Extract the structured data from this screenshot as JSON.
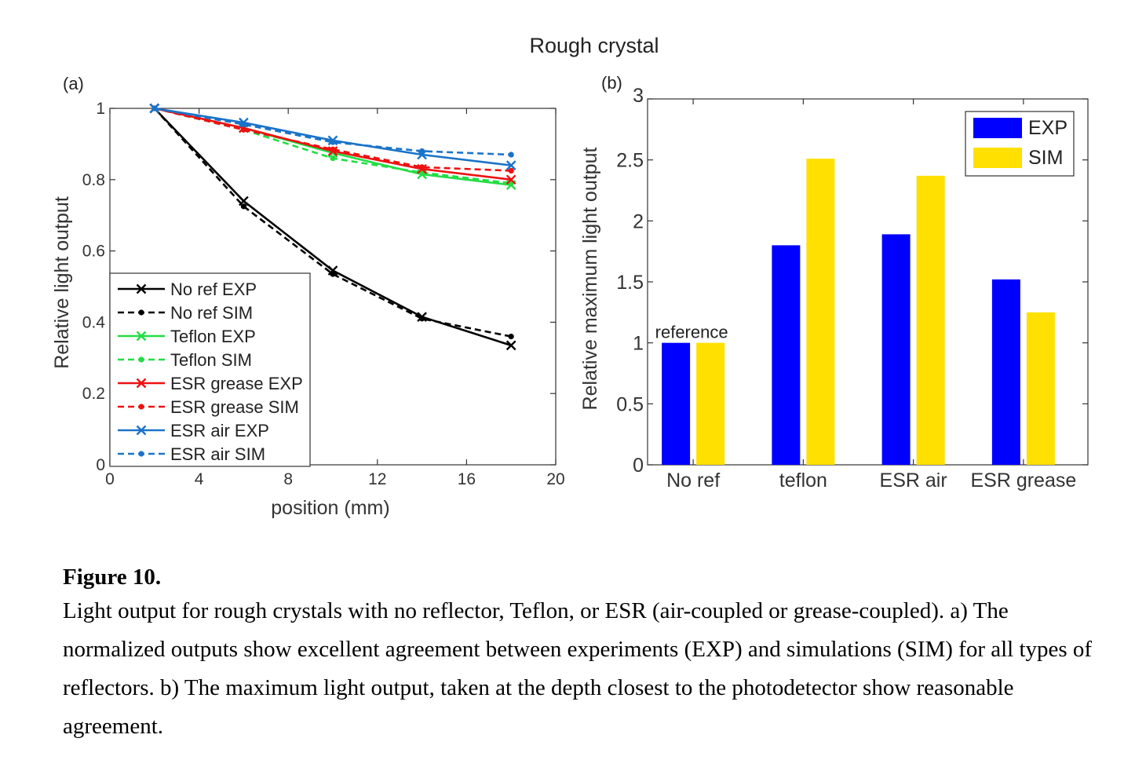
{
  "figure_title": "Rough crystal",
  "caption": {
    "label": "Figure 10.",
    "text": "Light output for rough crystals with no reflector, Teflon, or ESR (air-coupled or grease-coupled). a) The normalized outputs show excellent agreement between experiments (EXP) and simulations (SIM) for all types of reflectors. b) The maximum light output, taken at the depth closest to the photodetector show reasonable agreement."
  },
  "chart_data": [
    {
      "panel_label": "(a)",
      "type": "line",
      "xlabel": "position (mm)",
      "ylabel": "Relative light output",
      "xlim": [
        0,
        20
      ],
      "ylim": [
        0,
        1
      ],
      "xticks": [
        0,
        4,
        8,
        12,
        16,
        20
      ],
      "yticks": [
        0,
        0.2,
        0.4,
        0.6,
        0.8,
        1
      ],
      "grid": false,
      "legend_position": "lower-left",
      "x": [
        2,
        6,
        10,
        14,
        18
      ],
      "series": [
        {
          "name": "No ref EXP",
          "color": "#000000",
          "style": "solid",
          "marker": "x",
          "values": [
            1.0,
            0.74,
            0.545,
            0.415,
            0.335
          ]
        },
        {
          "name": "No ref SIM",
          "color": "#000000",
          "style": "dashed",
          "marker": "dot",
          "values": [
            1.0,
            0.725,
            0.535,
            0.41,
            0.36
          ]
        },
        {
          "name": "Teflon EXP",
          "color": "#22dd44",
          "style": "solid",
          "marker": "x",
          "values": [
            1.0,
            0.945,
            0.875,
            0.815,
            0.785
          ]
        },
        {
          "name": "Teflon SIM",
          "color": "#22dd44",
          "style": "dashed",
          "marker": "dot",
          "values": [
            1.0,
            0.94,
            0.86,
            0.82,
            0.79
          ]
        },
        {
          "name": "ESR grease EXP",
          "color": "#ee1111",
          "style": "solid",
          "marker": "x",
          "values": [
            1.0,
            0.945,
            0.88,
            0.83,
            0.8
          ]
        },
        {
          "name": "ESR grease SIM",
          "color": "#ee1111",
          "style": "dashed",
          "marker": "dot",
          "values": [
            1.0,
            0.94,
            0.885,
            0.835,
            0.825
          ]
        },
        {
          "name": "ESR air EXP",
          "color": "#1a73c8",
          "style": "solid",
          "marker": "x",
          "values": [
            1.0,
            0.96,
            0.91,
            0.87,
            0.84
          ]
        },
        {
          "name": "ESR air SIM",
          "color": "#1a73c8",
          "style": "dashed",
          "marker": "dot",
          "values": [
            1.0,
            0.955,
            0.905,
            0.88,
            0.87
          ]
        }
      ]
    },
    {
      "panel_label": "(b)",
      "type": "bar",
      "xlabel": "",
      "ylabel": "Relative maximum light output",
      "ylim": [
        0,
        3
      ],
      "yticks": [
        0,
        0.5,
        1,
        1.5,
        2,
        2.5,
        3
      ],
      "grid": false,
      "legend_position": "top-right",
      "categories": [
        "No ref",
        "teflon",
        "ESR air",
        "ESR grease"
      ],
      "series": [
        {
          "name": "EXP",
          "color": "#0000ff",
          "values": [
            1.0,
            1.8,
            1.89,
            1.52
          ]
        },
        {
          "name": "SIM",
          "color": "#ffe000",
          "values": [
            1.0,
            2.51,
            2.37,
            1.25
          ]
        }
      ],
      "annotations": [
        {
          "text": "reference",
          "category": "No ref"
        }
      ]
    }
  ]
}
